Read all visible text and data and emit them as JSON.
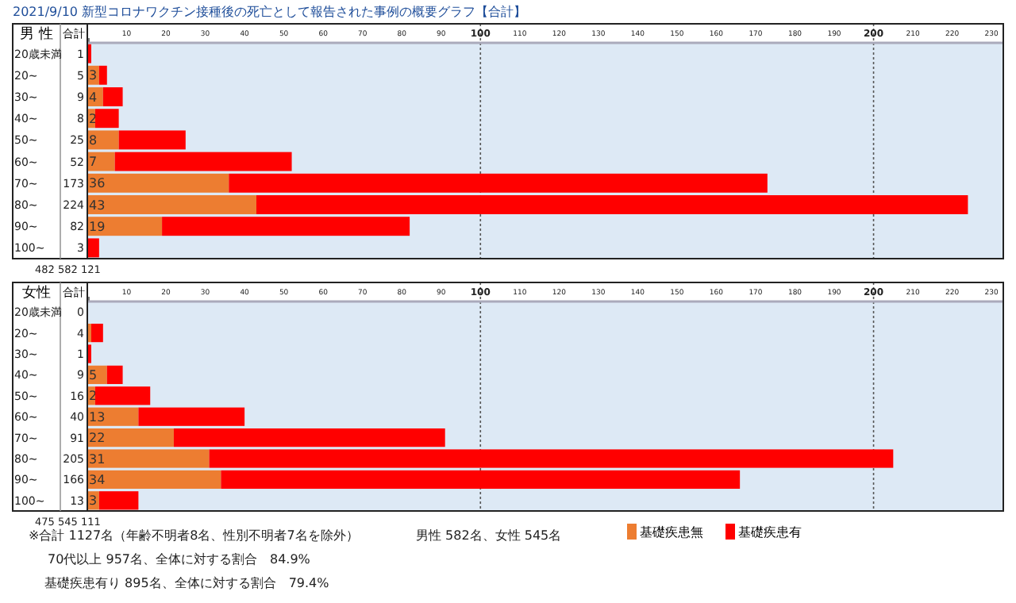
{
  "chart_data": [
    {
      "type": "bar",
      "orientation": "horizontal",
      "stacked": true,
      "title": "2021/9/10 新型コロナワクチン接種後の死亡として報告された事例の概要グラフ【合計】",
      "ylabel": "男 性",
      "categories": [
        "20歳未満",
        "20~",
        "30~",
        "40~",
        "50~",
        "60~",
        "70~",
        "80~",
        "90~",
        "100~"
      ],
      "series": [
        {
          "color": "#ed7d31",
          "values": [
            0,
            3,
            4,
            2,
            8,
            7,
            36,
            43,
            19,
            0
          ],
          "value_labels": [
            null,
            "3",
            "4",
            "2",
            "8",
            "7",
            "36",
            "43",
            "19",
            null
          ]
        },
        {
          "color": "#ff0000",
          "values": [
            1,
            2,
            5,
            6,
            17,
            45,
            137,
            181,
            63,
            3
          ]
        }
      ],
      "totals": [
        "1",
        "5",
        "9",
        "8",
        "25",
        "52",
        "173",
        "224",
        "82",
        "3"
      ],
      "xlim": [
        0,
        233
      ],
      "xticks": [
        {
          "value": 0,
          "label": null
        },
        10,
        20,
        30,
        40,
        50,
        60,
        70,
        80,
        90,
        100,
        110,
        120,
        130,
        140,
        150,
        160,
        170,
        180,
        190,
        200,
        210,
        220,
        230
      ],
      "ref_lines": [
        {
          "axis": "x",
          "value": 100,
          "line_style": "dotted"
        },
        {
          "axis": "x",
          "value": 200,
          "line_style": "dotted"
        }
      ],
      "legend": false,
      "annotations": [
        "合計",
        "482 582 121"
      ]
    },
    {
      "type": "bar",
      "orientation": "horizontal",
      "stacked": true,
      "ylabel": "女性",
      "categories": [
        "20歳未満",
        "20~",
        "30~",
        "40~",
        "50~",
        "60~",
        "70~",
        "80~",
        "90~",
        "100~"
      ],
      "series": [
        {
          "name": "基礎疾患無",
          "color": "#ed7d31",
          "values": [
            0,
            1,
            0,
            5,
            2,
            13,
            22,
            31,
            34,
            3
          ],
          "value_labels": [
            null,
            null,
            null,
            "5",
            "2",
            "13",
            "22",
            "31",
            "34",
            "3"
          ]
        },
        {
          "name": "基礎疾患有",
          "color": "#ff0000",
          "values": [
            0,
            3,
            1,
            4,
            14,
            27,
            69,
            174,
            132,
            10
          ]
        }
      ],
      "totals": [
        "0",
        "4",
        "1",
        "9",
        "16",
        "40",
        "91",
        "205",
        "166",
        "13"
      ],
      "xlim": [
        0,
        233
      ],
      "xticks": [
        {
          "value": 0,
          "label": null
        },
        10,
        20,
        30,
        40,
        50,
        60,
        70,
        80,
        90,
        100,
        110,
        120,
        130,
        140,
        150,
        160,
        170,
        180,
        190,
        200,
        210,
        220,
        230
      ],
      "ref_lines": [
        {
          "axis": "x",
          "value": 100,
          "line_style": "dotted"
        },
        {
          "axis": "x",
          "value": 200,
          "line_style": "dotted"
        }
      ],
      "legend": "bottom right",
      "annotations": [
        "合計",
        "475 545 111",
        "※合計 1127名（年齢不明者8名、性別不明者7名を除外）",
        "男性 582名、女性 545名",
        "70代以上 957名、全体に対する割合　84.9%",
        "基礎疾患有り 895名、全体に対する割合　79.4%"
      ]
    }
  ]
}
